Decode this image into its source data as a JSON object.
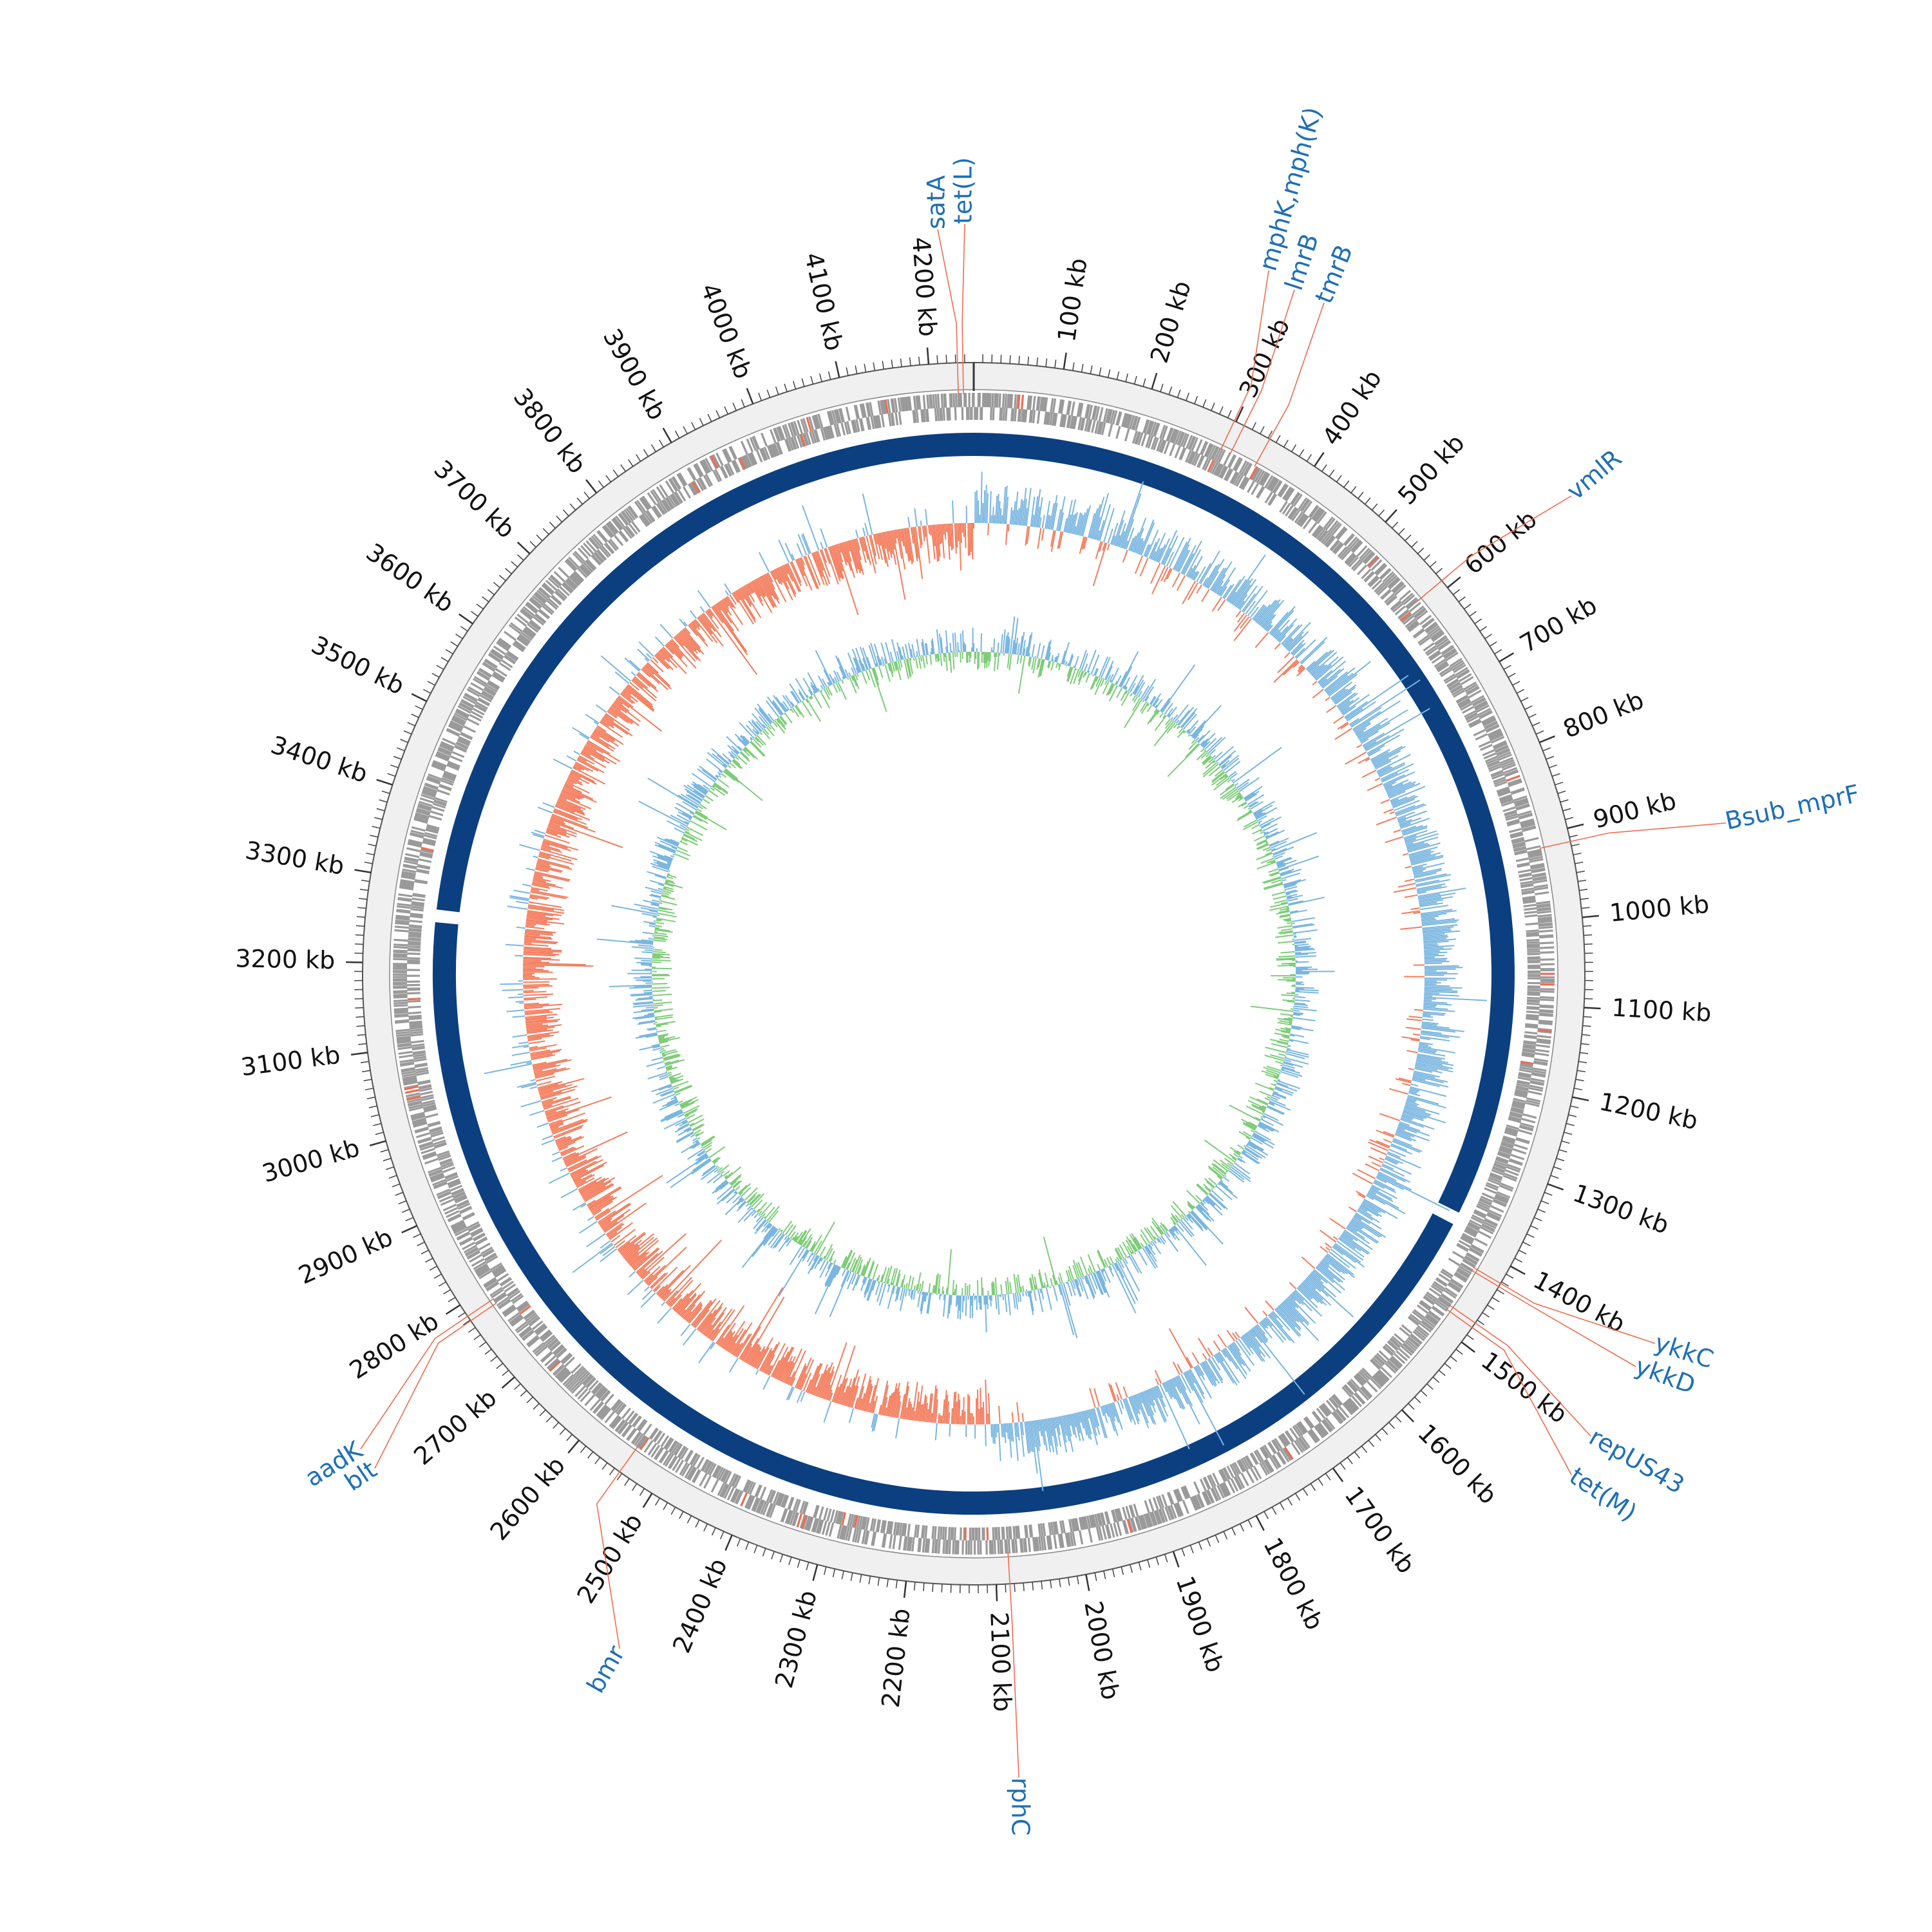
{
  "genome": {
    "length_kb": 4250,
    "tick_step_kb": 100,
    "minor_tick_step_kb": 10,
    "tick_unit": "kb",
    "contig_breaks_kb": [
      1380,
      3260
    ]
  },
  "colors": {
    "ruler_band": "#f0f0f0",
    "feature_gene": "#9a9a9a",
    "feature_highlight": "#f26b50",
    "contig_ring": "#0b3f80",
    "gc_skew_positive": "#7ab6e0",
    "gc_skew_negative": "#f47c5c",
    "gc_content_high": "#7ab6e0",
    "gc_content_low": "#7fcc7a",
    "label_text": "#1f6fb5",
    "leader_line": "#f26b50"
  },
  "annotations": [
    {
      "label": "tet(L)",
      "position_kb": 4238
    },
    {
      "label": "satA",
      "position_kb": 4232
    },
    {
      "label": "mphK,mph(K)",
      "position_kb": 298
    },
    {
      "label": "lmrB",
      "position_kb": 310
    },
    {
      "label": "tmrB",
      "position_kb": 342
    },
    {
      "label": "vmlR",
      "position_kb": 590
    },
    {
      "label": "Bsub_mprF",
      "position_kb": 915
    },
    {
      "label": "ykkC",
      "position_kb": 1422
    },
    {
      "label": "ykkD",
      "position_kb": 1426
    },
    {
      "label": "repUS43",
      "position_kb": 1474
    },
    {
      "label": "tet(M)",
      "position_kb": 1480
    },
    {
      "label": "rphC",
      "position_kb": 2085
    },
    {
      "label": "bmr",
      "position_kb": 2543
    },
    {
      "label": "aadK",
      "position_kb": 2785
    },
    {
      "label": "blt",
      "position_kb": 2779
    }
  ]
}
